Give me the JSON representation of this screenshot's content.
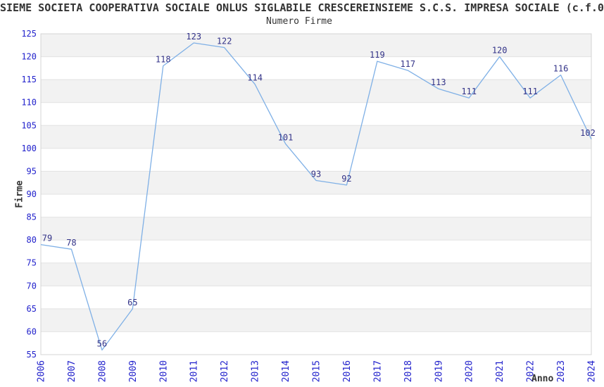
{
  "header": {
    "title": "SIEME SOCIETA COOPERATIVA SOCIALE ONLUS SIGLABILE CRESCEREINSIEME S.C.S. IMPRESA SOCIALE (c.f.0",
    "subtitle": "Numero Firme"
  },
  "chart_data": {
    "type": "line",
    "title": "Numero Firme",
    "xlabel": "Anno",
    "ylabel": "Firme",
    "categories": [
      "2006",
      "2007",
      "2008",
      "2009",
      "2010",
      "2011",
      "2012",
      "2013",
      "2014",
      "2015",
      "2016",
      "2017",
      "2018",
      "2019",
      "2020",
      "2021",
      "2022",
      "2023",
      "2024"
    ],
    "values": [
      79,
      78,
      56,
      65,
      118,
      123,
      122,
      114,
      101,
      93,
      92,
      119,
      117,
      113,
      111,
      120,
      111,
      116,
      102
    ],
    "ylim": [
      55,
      125
    ],
    "ytick_step": 5,
    "grid": "horizontal-bands",
    "legend": "none",
    "data_labels_shown": true
  },
  "colors": {
    "line": "#7fb0e6",
    "axis_tick_label": "#2222cc",
    "data_label": "#333388",
    "heading_text": "#333333",
    "band_fill": "#f2f2f2",
    "gridline": "#e2e2e2",
    "plot_border": "#d4d4d4",
    "background": "#ffffff"
  }
}
